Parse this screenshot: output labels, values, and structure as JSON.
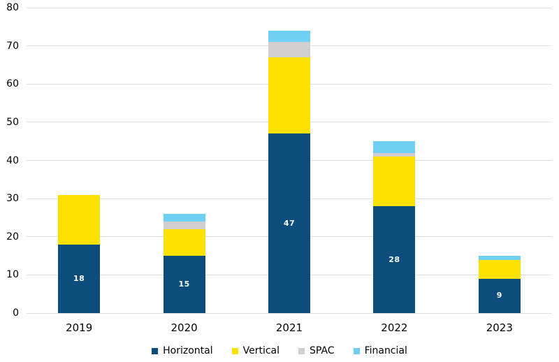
{
  "chart_data": {
    "type": "bar",
    "stacked": true,
    "title": "",
    "categories": [
      "2019",
      "2020",
      "2021",
      "2022",
      "2023"
    ],
    "series": [
      {
        "name": "Horizontal",
        "color": "#0C4D7E",
        "values": [
          18,
          15,
          47,
          28,
          9
        ],
        "show_labels": true,
        "label_color": "#FFFFFF"
      },
      {
        "name": "Vertical",
        "color": "#FFE100",
        "values": [
          13,
          7,
          20,
          13,
          5
        ],
        "show_labels": false
      },
      {
        "name": "SPAC",
        "color": "#D0CECE",
        "values": [
          0,
          2,
          4,
          1,
          0
        ],
        "show_labels": false
      },
      {
        "name": "Financial",
        "color": "#6FCFF5",
        "values": [
          0,
          2,
          3,
          3,
          1
        ],
        "show_labels": false
      }
    ],
    "xlabel": "",
    "ylabel": "",
    "ylim": [
      0,
      80
    ],
    "ytick_step": 10,
    "grid": true,
    "gridline_color": "#E0E0E0",
    "axis_text_color": "#000000",
    "legend_position": "bottom"
  }
}
